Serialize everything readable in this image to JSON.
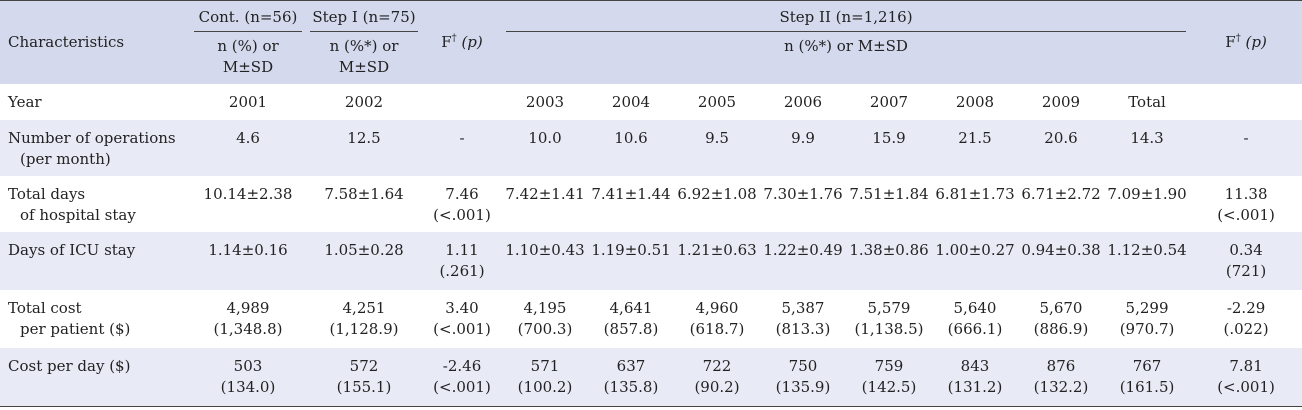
{
  "header": {
    "characteristics": "Characteristics",
    "cont_group": "Cont. (n=56)",
    "step1_group": "Step I (n=75)",
    "step2_group": "Step II (n=1,216)",
    "cont_sub1": "n (%) or",
    "cont_sub2": "M±SD",
    "step1_sub1": "n (%*) or",
    "step1_sub2": "M±SD",
    "f_label": "F",
    "f_dagger": "†",
    "f_p": "(p)",
    "step2_sub": "n (%*) or M±SD"
  },
  "rows": [
    {
      "label1": "Year",
      "label2": "",
      "cont": [
        "2001",
        ""
      ],
      "step1": [
        "2002",
        ""
      ],
      "f1": [
        "",
        ""
      ],
      "years": [
        [
          "2003",
          ""
        ],
        [
          "2004",
          ""
        ],
        [
          "2005",
          ""
        ],
        [
          "2006",
          ""
        ],
        [
          "2007",
          ""
        ],
        [
          "2008",
          ""
        ],
        [
          "2009",
          ""
        ],
        [
          "Total",
          ""
        ]
      ],
      "f2": [
        "",
        ""
      ]
    },
    {
      "label1": "Number of operations",
      "label2": "(per month)",
      "cont": [
        "4.6",
        ""
      ],
      "step1": [
        "12.5",
        ""
      ],
      "f1": [
        "-",
        ""
      ],
      "years": [
        [
          "10.0",
          ""
        ],
        [
          "10.6",
          ""
        ],
        [
          "9.5",
          ""
        ],
        [
          "9.9",
          ""
        ],
        [
          "15.9",
          ""
        ],
        [
          "21.5",
          ""
        ],
        [
          "20.6",
          ""
        ],
        [
          "14.3",
          ""
        ]
      ],
      "f2": [
        "-",
        ""
      ]
    },
    {
      "label1": "Total days",
      "label2": "of hospital stay",
      "cont": [
        "10.14±2.38",
        ""
      ],
      "step1": [
        "7.58±1.64",
        ""
      ],
      "f1": [
        "7.46",
        "(<.001)"
      ],
      "years": [
        [
          "7.42±1.41",
          ""
        ],
        [
          "7.41±1.44",
          ""
        ],
        [
          "6.92±1.08",
          ""
        ],
        [
          "7.30±1.76",
          ""
        ],
        [
          "7.51±1.84",
          ""
        ],
        [
          "6.81±1.73",
          ""
        ],
        [
          "6.71±2.72",
          ""
        ],
        [
          "7.09±1.90",
          ""
        ]
      ],
      "f2": [
        "11.38",
        "(<.001)"
      ]
    },
    {
      "label1": "Days of ICU stay",
      "label2": "",
      "cont": [
        "1.14±0.16",
        ""
      ],
      "step1": [
        "1.05±0.28",
        ""
      ],
      "f1": [
        "1.11",
        "(.261)"
      ],
      "years": [
        [
          "1.10±0.43",
          ""
        ],
        [
          "1.19±0.51",
          ""
        ],
        [
          "1.21±0.63",
          ""
        ],
        [
          "1.22±0.49",
          ""
        ],
        [
          "1.38±0.86",
          ""
        ],
        [
          "1.00±0.27",
          ""
        ],
        [
          "0.94±0.38",
          ""
        ],
        [
          "1.12±0.54",
          ""
        ]
      ],
      "f2": [
        "0.34",
        "(721)"
      ]
    },
    {
      "label1": "Total cost",
      "label2": "per patient ($)",
      "cont": [
        "4,989",
        "(1,348.8)"
      ],
      "step1": [
        "4,251",
        "(1,128.9)"
      ],
      "f1": [
        "3.40",
        "(<.001)"
      ],
      "years": [
        [
          "4,195",
          "(700.3)"
        ],
        [
          "4,641",
          "(857.8)"
        ],
        [
          "4,960",
          "(618.7)"
        ],
        [
          "5,387",
          "(813.3)"
        ],
        [
          "5,579",
          "(1,138.5)"
        ],
        [
          "5,640",
          "(666.1)"
        ],
        [
          "5,670",
          "(886.9)"
        ],
        [
          "5,299",
          "(970.7)"
        ]
      ],
      "f2": [
        "-2.29",
        "(.022)"
      ]
    },
    {
      "label1": "Cost per day ($)",
      "label2": "",
      "cont": [
        "503",
        "(134.0)"
      ],
      "step1": [
        "572",
        "(155.1)"
      ],
      "f1": [
        "-2.46",
        "(<.001)"
      ],
      "years": [
        [
          "571",
          "(100.2)"
        ],
        [
          "637",
          "(135.8)"
        ],
        [
          "722",
          "(90.2)"
        ],
        [
          "750",
          "(135.9)"
        ],
        [
          "759",
          "(142.5)"
        ],
        [
          "843",
          "(131.2)"
        ],
        [
          "876",
          "(132.2)"
        ],
        [
          "767",
          "(161.5)"
        ]
      ],
      "f2": [
        "7.81",
        "(<.001)"
      ]
    }
  ]
}
